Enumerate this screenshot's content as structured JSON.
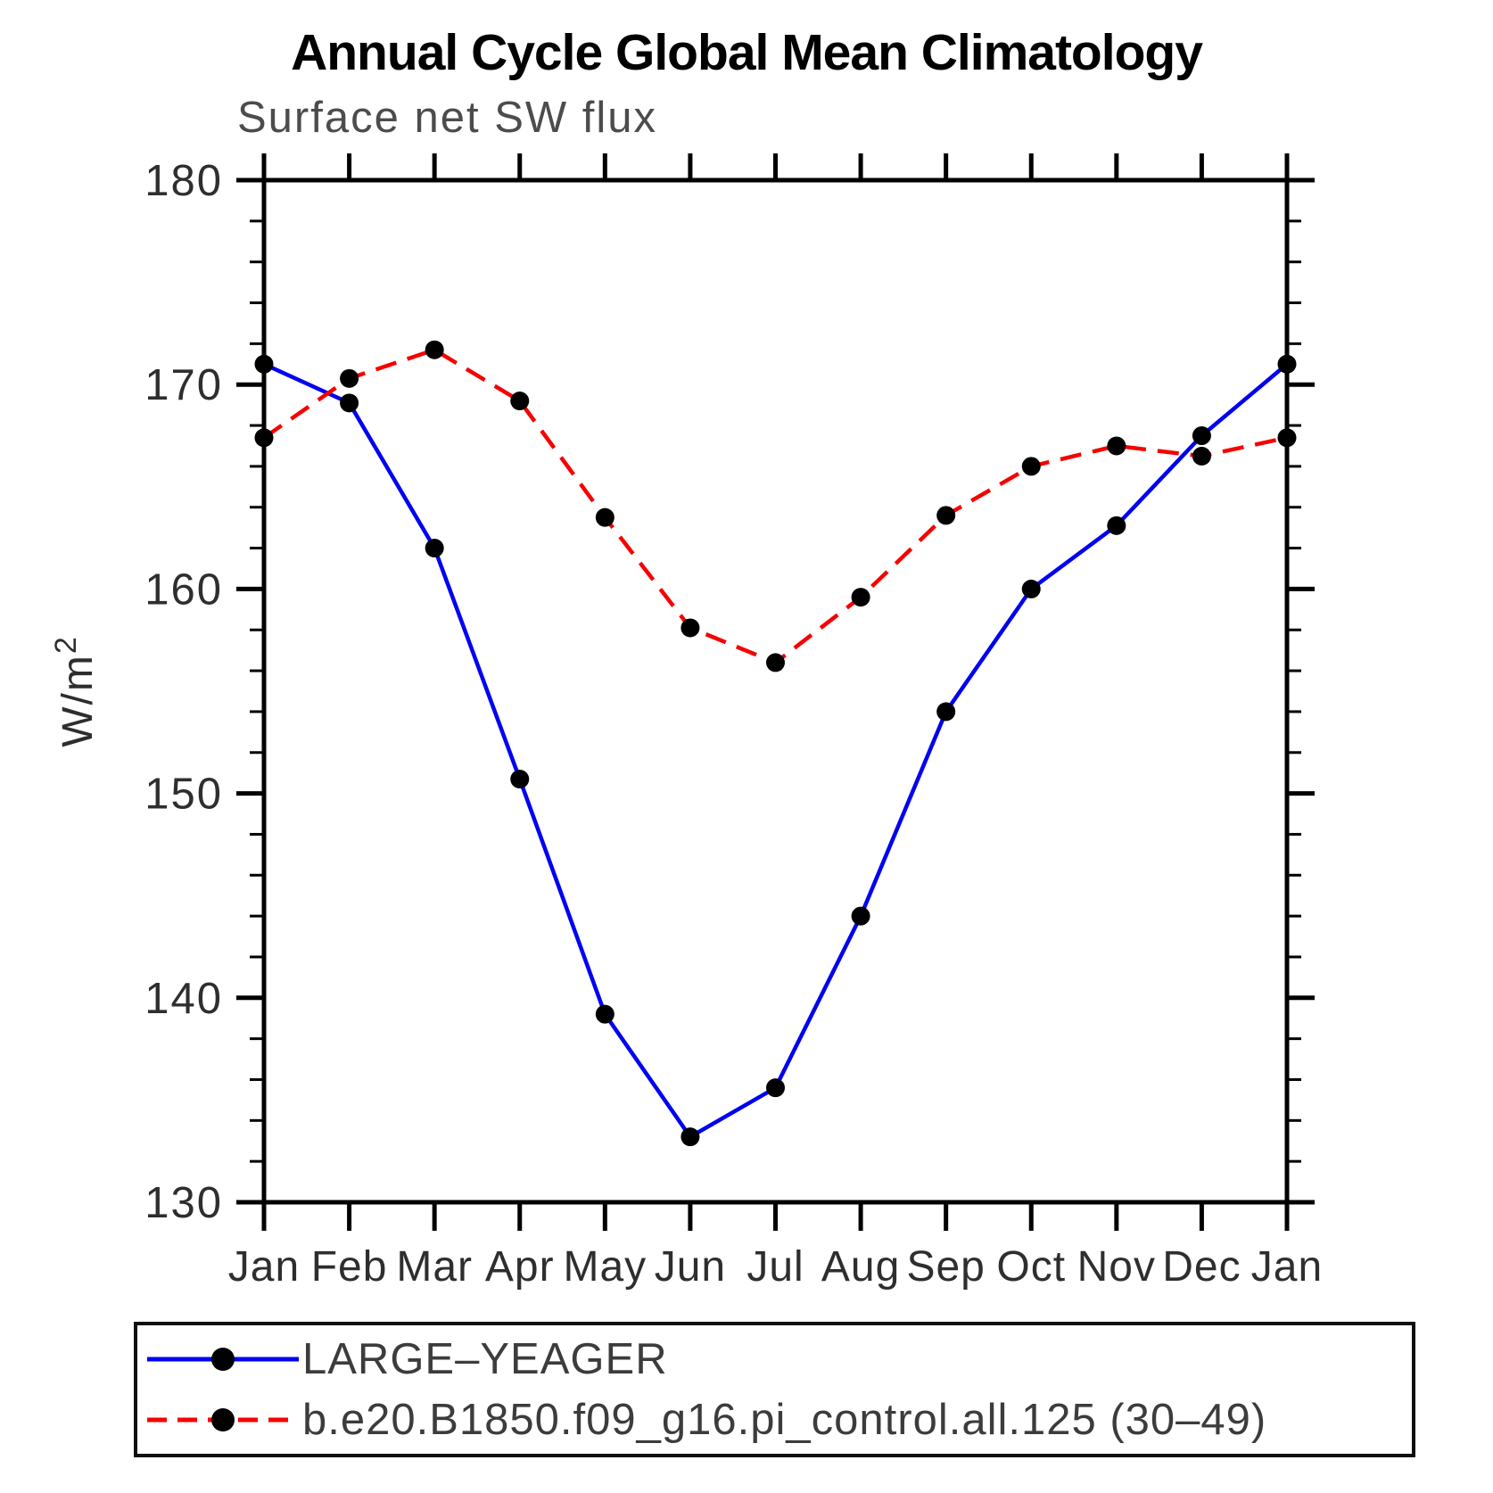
{
  "title": "Annual Cycle Global Mean Climatology",
  "subtitle": "Surface net SW flux",
  "chart_data": {
    "type": "line",
    "categories": [
      "Jan",
      "Feb",
      "Mar",
      "Apr",
      "May",
      "Jun",
      "Jul",
      "Aug",
      "Sep",
      "Oct",
      "Nov",
      "Dec",
      "Jan"
    ],
    "ylabel": "W/m²",
    "ylim": [
      130,
      180
    ],
    "yticks_major": [
      130,
      140,
      150,
      160,
      170,
      180
    ],
    "ytick_minor_step": 2,
    "grid": false,
    "legend_position": "bottom-left-box",
    "axis_color": "#000000",
    "series": [
      {
        "name": "LARGE–YEAGER",
        "color": "#0000f2",
        "line_style": "solid",
        "marker": "filled-circle",
        "marker_color": "#000000",
        "values": [
          171.0,
          169.1,
          162.0,
          150.7,
          139.2,
          133.2,
          135.6,
          144.0,
          154.0,
          160.0,
          163.1,
          167.5,
          171.0
        ]
      },
      {
        "name": "b.e20.B1850.f09_g16.pi_control.all.125 (30–49)",
        "color": "#f70000",
        "line_style": "dashed",
        "marker": "filled-circle",
        "marker_color": "#000000",
        "values": [
          167.4,
          170.3,
          171.7,
          169.2,
          163.5,
          158.1,
          156.4,
          159.6,
          163.6,
          166.0,
          167.0,
          166.5,
          167.4
        ]
      }
    ]
  }
}
